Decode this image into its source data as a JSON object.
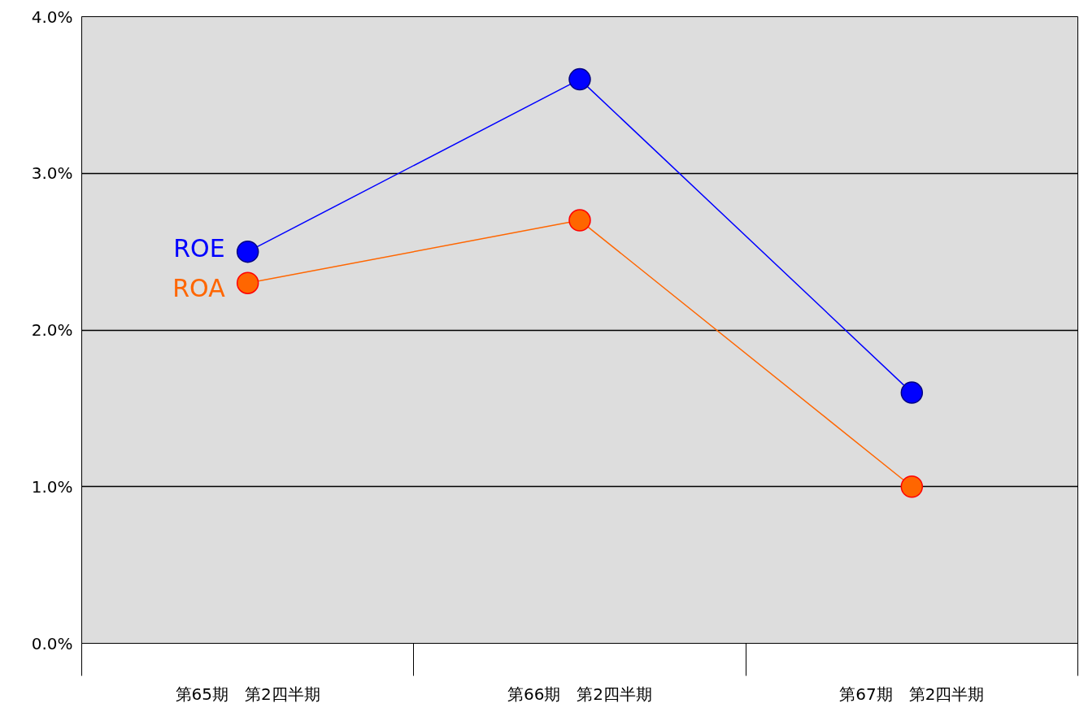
{
  "chart_data": {
    "type": "line",
    "categories": [
      "第65期　第2四半期",
      "第66期　第2四半期",
      "第67期　第2四半期"
    ],
    "series": [
      {
        "name": "ROE",
        "color": "#0000ff",
        "values": [
          2.5,
          3.6,
          1.6
        ]
      },
      {
        "name": "ROA",
        "color": "#ff6600",
        "values": [
          2.3,
          2.7,
          1.0
        ]
      }
    ],
    "ylim": [
      0,
      4
    ],
    "yticks": [
      {
        "value": 0,
        "label": "0.0%"
      },
      {
        "value": 1,
        "label": "1.0%"
      },
      {
        "value": 2,
        "label": "2.0%"
      },
      {
        "value": 3,
        "label": "3.0%"
      },
      {
        "value": 4,
        "label": "4.0%"
      }
    ],
    "grid": "y",
    "marker": "circle",
    "line_style": "solid"
  }
}
